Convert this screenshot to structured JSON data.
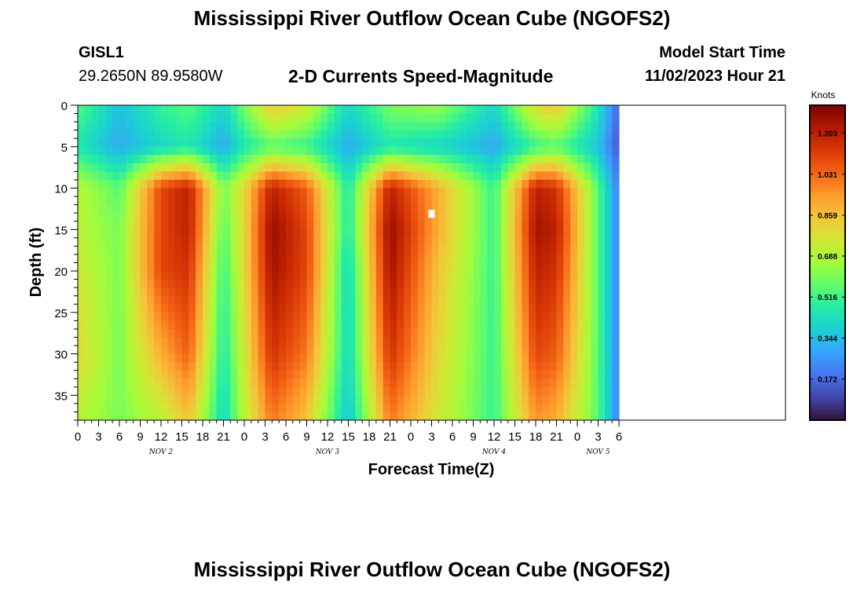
{
  "header": {
    "title": "Mississippi River Outflow Ocean Cube (NGOFS2)",
    "station_id": "GISL1",
    "station_coords": "29.2650N  89.9580W",
    "subtitle": "2-D Currents Speed-Magnitude",
    "model_start_label": "Model Start Time",
    "model_start_value": "11/02/2023 Hour 21"
  },
  "footer": {
    "title_repeat": "Mississippi River Outflow Ocean Cube (NGOFS2)"
  },
  "colors": {
    "background": "#ffffff",
    "text": "#000000",
    "marker": "#ffffff"
  },
  "chart_data": {
    "type": "heatmap",
    "xlabel": "Forecast Time(Z)",
    "ylabel": "Depth (ft)",
    "x_unit": "forecast hour from Nov 2 00Z",
    "x_range": [
      0,
      102
    ],
    "y_range": [
      0,
      38
    ],
    "y_reversed": true,
    "x_ticks": [
      {
        "hour": 0,
        "label": "0"
      },
      {
        "hour": 3,
        "label": "3"
      },
      {
        "hour": 6,
        "label": "6"
      },
      {
        "hour": 9,
        "label": "9"
      },
      {
        "hour": 12,
        "label": "12"
      },
      {
        "hour": 15,
        "label": "15"
      },
      {
        "hour": 18,
        "label": "18"
      },
      {
        "hour": 21,
        "label": "21"
      },
      {
        "hour": 24,
        "label": "0"
      },
      {
        "hour": 27,
        "label": "3"
      },
      {
        "hour": 30,
        "label": "6"
      },
      {
        "hour": 33,
        "label": "9"
      },
      {
        "hour": 36,
        "label": "12"
      },
      {
        "hour": 39,
        "label": "15"
      },
      {
        "hour": 42,
        "label": "18"
      },
      {
        "hour": 45,
        "label": "21"
      },
      {
        "hour": 48,
        "label": "0"
      },
      {
        "hour": 51,
        "label": "3"
      },
      {
        "hour": 54,
        "label": "6"
      },
      {
        "hour": 57,
        "label": "9"
      },
      {
        "hour": 60,
        "label": "12"
      },
      {
        "hour": 63,
        "label": "15"
      },
      {
        "hour": 66,
        "label": "18"
      },
      {
        "hour": 69,
        "label": "21"
      },
      {
        "hour": 72,
        "label": "0"
      },
      {
        "hour": 75,
        "label": "3"
      },
      {
        "hour": 78,
        "label": "6"
      }
    ],
    "y_ticks": [
      0,
      5,
      10,
      15,
      20,
      25,
      30,
      35
    ],
    "day_labels": [
      {
        "hour": 12,
        "label": "NOV 2"
      },
      {
        "hour": 36,
        "label": "NOV 3"
      },
      {
        "hour": 60,
        "label": "NOV 4"
      },
      {
        "hour": 75,
        "label": "NOV 5"
      }
    ],
    "colorbar": {
      "title": "Knots",
      "range": [
        0,
        1.32
      ],
      "tick_values": [
        1.203,
        1.031,
        0.859,
        0.688,
        0.516,
        0.344,
        0.172
      ],
      "tick_labels": [
        "1.203",
        "1.031",
        "0.859",
        "0.688",
        "0.516",
        "0.344",
        "0.172"
      ],
      "colormap": [
        "#30123b",
        "#4145ab",
        "#4675ed",
        "#39a2fc",
        "#1bcfd4",
        "#24eca6",
        "#61fc6c",
        "#a4fc3b",
        "#d1e834",
        "#f3c63a",
        "#fe9b2d",
        "#f36315",
        "#d93806",
        "#b11901",
        "#7a0402"
      ]
    },
    "speed_field": {
      "description": "Current speed (knots) vs forecast hour and depth, approximate",
      "forecast_hours": [
        0,
        6,
        12,
        16,
        21,
        24,
        28,
        33,
        39,
        45,
        52,
        60,
        66,
        69,
        75,
        78
      ],
      "depths_ft": [
        0,
        5,
        10,
        15,
        20,
        30,
        38
      ],
      "values": [
        [
          0.55,
          0.45,
          0.7,
          0.7,
          0.75,
          0.8,
          0.7
        ],
        [
          0.35,
          0.3,
          0.55,
          0.6,
          0.6,
          0.6,
          0.6
        ],
        [
          0.5,
          0.4,
          1.1,
          1.1,
          1.1,
          0.9,
          0.7
        ],
        [
          0.55,
          0.45,
          1.2,
          1.2,
          1.15,
          1.05,
          0.85
        ],
        [
          0.4,
          0.3,
          0.6,
          0.55,
          0.5,
          0.45,
          0.4
        ],
        [
          0.6,
          0.45,
          0.8,
          0.8,
          0.8,
          0.75,
          0.7
        ],
        [
          0.85,
          0.55,
          1.2,
          1.28,
          1.25,
          1.15,
          1.0
        ],
        [
          0.75,
          0.5,
          1.05,
          1.1,
          1.1,
          1.0,
          0.85
        ],
        [
          0.4,
          0.3,
          0.45,
          0.45,
          0.4,
          0.4,
          0.35
        ],
        [
          0.6,
          0.45,
          1.2,
          1.28,
          1.25,
          1.15,
          1.0
        ],
        [
          0.65,
          0.4,
          0.9,
          0.9,
          0.85,
          0.8,
          0.75
        ],
        [
          0.4,
          0.3,
          0.5,
          0.5,
          0.5,
          0.5,
          0.5
        ],
        [
          0.8,
          0.5,
          1.2,
          1.25,
          1.2,
          1.1,
          0.95
        ],
        [
          0.85,
          0.55,
          1.15,
          1.2,
          1.15,
          1.05,
          0.9
        ],
        [
          0.45,
          0.35,
          0.55,
          0.55,
          0.55,
          0.55,
          0.55
        ],
        [
          0.15,
          0.12,
          0.2,
          0.2,
          0.2,
          0.2,
          0.2
        ]
      ]
    },
    "marker": {
      "hour": 51,
      "depth_ft": 13,
      "label": "station depth marker"
    }
  }
}
